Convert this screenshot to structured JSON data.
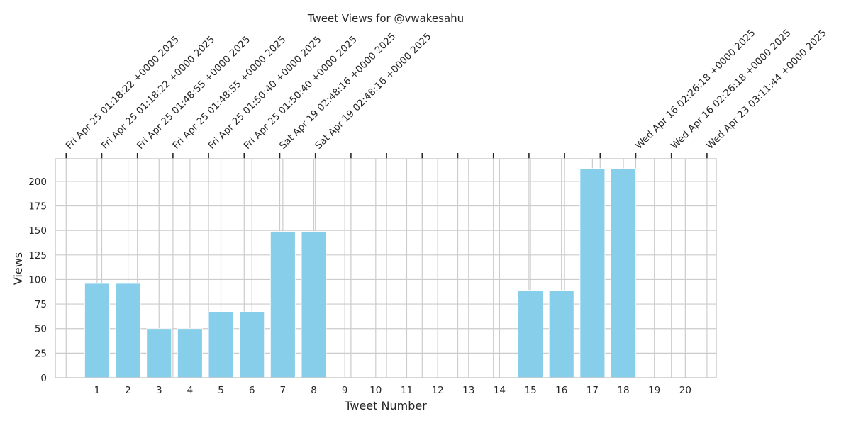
{
  "chart_data": {
    "type": "bar",
    "title": "Tweet Views for @vwakesahu",
    "xlabel": "Tweet Number",
    "ylabel": "Views",
    "x": [
      1,
      2,
      3,
      4,
      5,
      6,
      7,
      8,
      9,
      10,
      11,
      12,
      13,
      14,
      15,
      16,
      17,
      18,
      19,
      20
    ],
    "values": [
      96,
      96,
      50,
      50,
      67,
      67,
      149,
      149,
      0,
      0,
      0,
      0,
      0,
      0,
      89,
      89,
      213,
      213,
      0,
      0
    ],
    "yticks": [
      0,
      25,
      50,
      75,
      100,
      125,
      150,
      175,
      200
    ],
    "ylim": [
      0,
      223
    ],
    "xlim": [
      -0.35,
      21.0
    ],
    "grid": true,
    "colors": {
      "bar": "#87ceeb",
      "grid": "#cccccc",
      "spine": "#cccccc",
      "tick": "#262626"
    },
    "top_axis": {
      "ticks": [
        0,
        1.15,
        2.3,
        3.45,
        4.6,
        5.75,
        6.9,
        8.05,
        9.2,
        10.35,
        11.5,
        12.65,
        13.8,
        14.95,
        16.1,
        17.25,
        18.4,
        19.55,
        20.7,
        21.85
      ],
      "labels": [
        "Fri Apr 25 01:18:22 +0000 2025",
        "Fri Apr 25 01:18:22 +0000 2025",
        "Fri Apr 25 01:48:55 +0000 2025",
        "Fri Apr 25 01:48:55 +0000 2025",
        "Fri Apr 25 01:50:40 +0000 2025",
        "Fri Apr 25 01:50:40 +0000 2025",
        "Sat Apr 19 02:48:16 +0000 2025",
        "Sat Apr 19 02:48:16 +0000 2025",
        "",
        "",
        "",
        "",
        "",
        "",
        "",
        "",
        "Wed Apr 16 02:26:18 +0000 2025",
        "Wed Apr 16 02:26:18 +0000 2025",
        "Wed Apr 23 03:11:44 +0000 2025",
        "Wed Apr 23 03:11:44 +0000 2025"
      ]
    }
  }
}
